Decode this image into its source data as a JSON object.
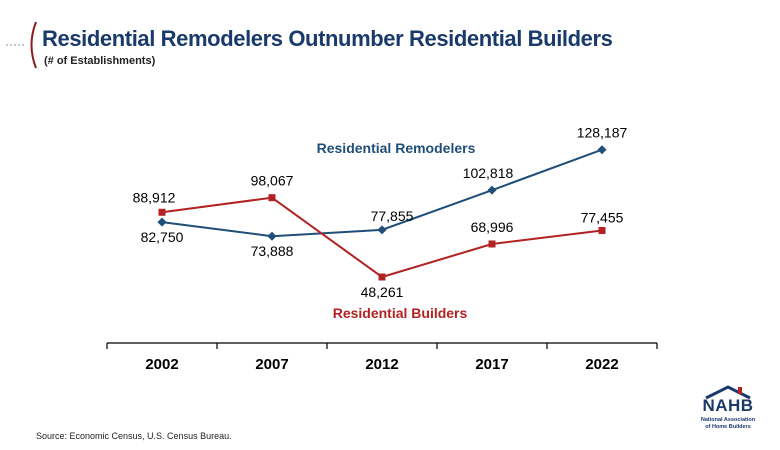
{
  "header": {
    "title": "Residential Remodelers Outnumber Residential Builders",
    "subtitle": "(# of Establishments)"
  },
  "chart_data": {
    "type": "line",
    "categories": [
      "2002",
      "2007",
      "2012",
      "2017",
      "2022"
    ],
    "series": [
      {
        "name": "Residential Remodelers",
        "values": [
          82750,
          73888,
          77855,
          102818,
          128187
        ],
        "labels": [
          "82,750",
          "73,888",
          "77,855",
          "102,818",
          "128,187"
        ],
        "color": "#1f4e79"
      },
      {
        "name": "Residential Builders",
        "values": [
          88912,
          98067,
          48261,
          68996,
          77455
        ],
        "labels": [
          "88,912",
          "98,067",
          "48,261",
          "68,996",
          "77,455"
        ],
        "color": "#b22222"
      }
    ],
    "ylim": [
      20000,
      150000
    ],
    "grid": false,
    "legend": "inline labels"
  },
  "footer": {
    "source": "Source:  Economic Census, U.S. Census Bureau."
  },
  "logo": {
    "name": "NAHB",
    "subtitle_line1": "National Association",
    "subtitle_line2": "of Home Builders",
    "colors": {
      "navy": "#1a3a6b",
      "red": "#b22222"
    }
  }
}
